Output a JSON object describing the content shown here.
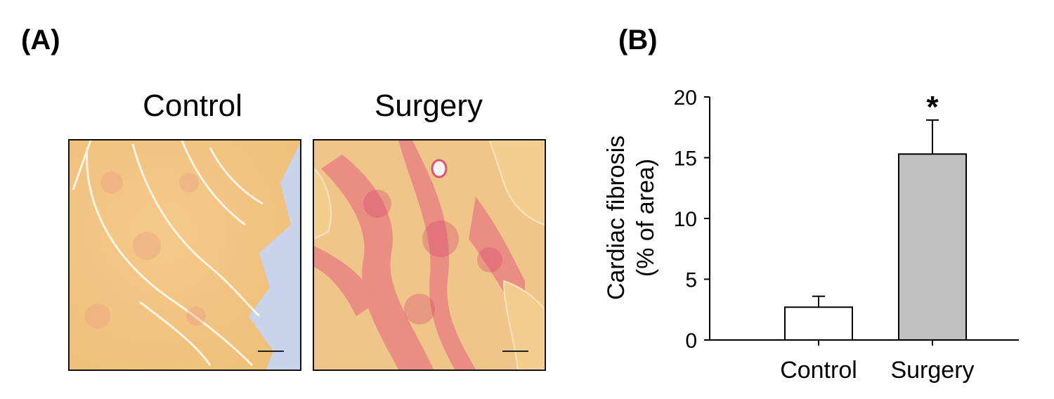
{
  "panels": {
    "a_label": "(A)",
    "b_label": "(B)"
  },
  "micrographs": {
    "control_title": "Control",
    "surgery_title": "Surgery",
    "stain_base_color": "#f2c77f",
    "collagen_color": "#e8587a",
    "background_color": "#c9d3ea"
  },
  "chart_data": {
    "type": "bar",
    "categories": [
      "Control",
      "Surgery"
    ],
    "values": [
      2.7,
      15.3
    ],
    "errors": [
      0.9,
      2.8
    ],
    "bar_colors": [
      "#ffffff",
      "#c0c0c0"
    ],
    "significance": [
      "",
      "*"
    ],
    "ylabel_line1": "Cardiac fibrosis",
    "ylabel_line2": "(% of area)",
    "yticks": [
      0,
      5,
      10,
      15,
      20
    ],
    "ylim": [
      0,
      20
    ]
  }
}
